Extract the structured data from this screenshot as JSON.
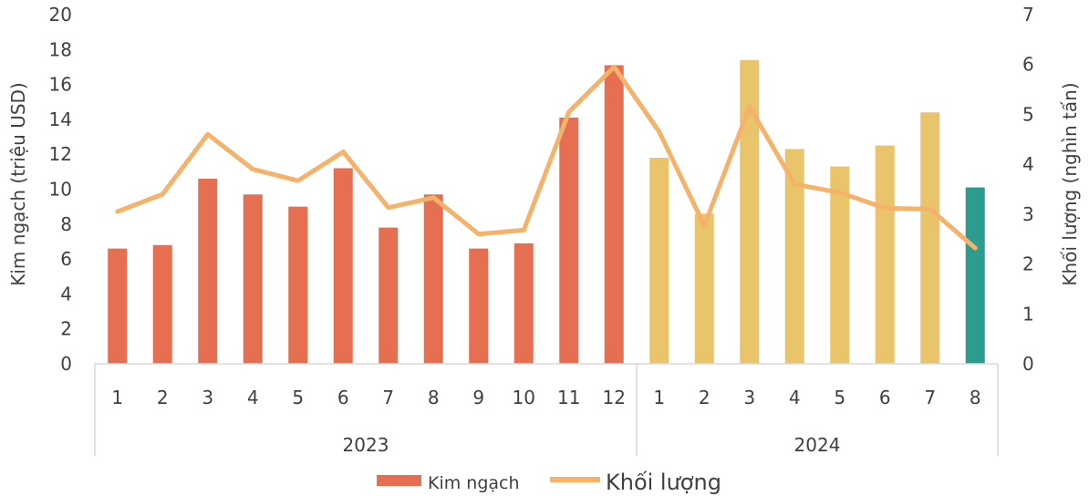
{
  "chart_data": {
    "type": "bar",
    "groups": [
      {
        "label": "2023",
        "months": [
          "1",
          "2",
          "3",
          "4",
          "5",
          "6",
          "7",
          "8",
          "9",
          "10",
          "11",
          "12"
        ]
      },
      {
        "label": "2024",
        "months": [
          "1",
          "2",
          "3",
          "4",
          "5",
          "6",
          "7",
          "8"
        ]
      }
    ],
    "ylabel": "Kim ngạch (triệu USD)",
    "y2label": "Khối lượng (nghìn tấn)",
    "ylim": [
      0,
      20
    ],
    "y2lim": [
      0,
      7
    ],
    "y_ticks": [
      "0",
      "2",
      "4",
      "6",
      "8",
      "10",
      "12",
      "14",
      "16",
      "18",
      "20"
    ],
    "y2_ticks": [
      "0",
      "1",
      "2",
      "3",
      "4",
      "5",
      "6",
      "7"
    ],
    "grid": false,
    "legend_position": "bottom",
    "series": [
      {
        "name": "Kim ngạch",
        "type": "bar",
        "axis": "left",
        "values": [
          6.6,
          6.8,
          10.6,
          9.7,
          9.0,
          11.2,
          7.8,
          9.7,
          6.6,
          6.9,
          14.1,
          17.1,
          11.8,
          8.6,
          17.4,
          12.3,
          11.3,
          12.5,
          14.4,
          10.1
        ],
        "colors": [
          "#e76f51",
          "#e76f51",
          "#e76f51",
          "#e76f51",
          "#e76f51",
          "#e76f51",
          "#e76f51",
          "#e76f51",
          "#e76f51",
          "#e76f51",
          "#e76f51",
          "#e76f51",
          "#e9c46a",
          "#e9c46a",
          "#e9c46a",
          "#e9c46a",
          "#e9c46a",
          "#e9c46a",
          "#e9c46a",
          "#2a9d8f"
        ]
      },
      {
        "name": "Khối lượng",
        "type": "line",
        "axis": "right",
        "color": "#f4b26a",
        "values": [
          3.05,
          3.4,
          4.6,
          3.9,
          3.67,
          4.25,
          3.13,
          3.33,
          2.6,
          2.68,
          5.05,
          5.95,
          4.65,
          2.77,
          5.15,
          3.6,
          3.43,
          3.12,
          3.1,
          2.32
        ]
      }
    ]
  }
}
